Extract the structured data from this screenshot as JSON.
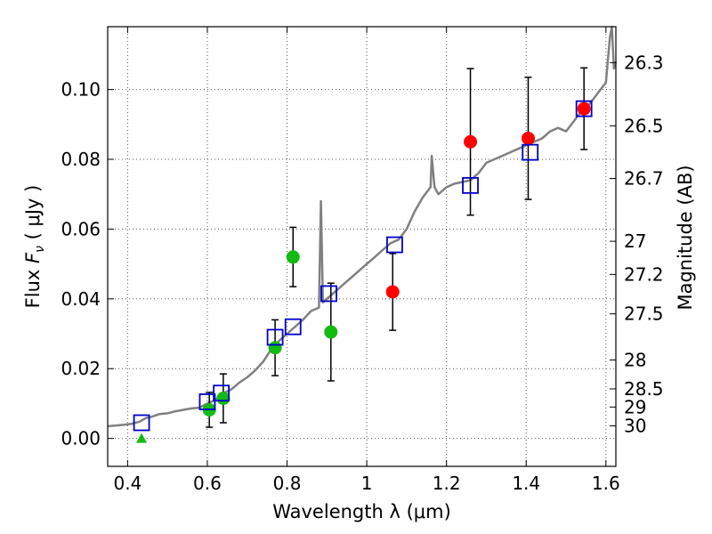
{
  "chart_data": {
    "type": "scatter",
    "title": "",
    "xlabel": "Wavelength  λ (μm)",
    "ylabel_parts": [
      "Flux  ",
      "F",
      "ν",
      "  ( μJy )"
    ],
    "y2label": "Magnitude (AB)",
    "xlim": [
      0.35,
      1.625
    ],
    "ylim": [
      -0.008,
      0.118
    ],
    "grid": true,
    "x_ticks": [
      0.4,
      0.6,
      0.8,
      1.0,
      1.2,
      1.4,
      1.6
    ],
    "x_tick_labels": [
      "0.4",
      "0.6",
      "0.8",
      "1",
      "1.2",
      "1.4",
      "1.6"
    ],
    "y_ticks": [
      0.0,
      0.02,
      0.04,
      0.06,
      0.08,
      0.1
    ],
    "y_tick_labels": [
      "0.00",
      "0.02",
      "0.04",
      "0.06",
      "0.08",
      "0.10"
    ],
    "mag_ticks": [
      {
        "label": "26.3",
        "flux": 0.1077
      },
      {
        "label": "26.5",
        "flux": 0.0896
      },
      {
        "label": "26.7",
        "flux": 0.0745
      },
      {
        "label": "27",
        "flux": 0.0565
      },
      {
        "label": "27.2",
        "flux": 0.047
      },
      {
        "label": "27.5",
        "flux": 0.0357
      },
      {
        "label": "28",
        "flux": 0.0225
      },
      {
        "label": "28.5",
        "flux": 0.0142
      },
      {
        "label": "29",
        "flux": 0.009
      },
      {
        "label": "30",
        "flux": 0.0036
      }
    ],
    "colors": {
      "model": "#808080",
      "model_bands": "#0000cc",
      "red_points": "#ff0000",
      "green_points": "#11bb11",
      "errorbar": "#000000",
      "grid": "#555555"
    },
    "series": [
      {
        "kind": "line",
        "points": [
          [
            0.35,
            0.0035
          ],
          [
            0.38,
            0.0038
          ],
          [
            0.41,
            0.0042
          ],
          [
            0.43,
            0.0048
          ],
          [
            0.445,
            0.0058
          ],
          [
            0.46,
            0.0062
          ],
          [
            0.48,
            0.007
          ],
          [
            0.5,
            0.0072
          ],
          [
            0.52,
            0.0078
          ],
          [
            0.54,
            0.0082
          ],
          [
            0.56,
            0.0086
          ],
          [
            0.58,
            0.0088
          ],
          [
            0.6,
            0.01
          ],
          [
            0.62,
            0.011
          ],
          [
            0.64,
            0.013
          ],
          [
            0.66,
            0.014
          ],
          [
            0.68,
            0.016
          ],
          [
            0.7,
            0.0175
          ],
          [
            0.72,
            0.0195
          ],
          [
            0.74,
            0.022
          ],
          [
            0.76,
            0.0255
          ],
          [
            0.78,
            0.028
          ],
          [
            0.8,
            0.03
          ],
          [
            0.82,
            0.032
          ],
          [
            0.84,
            0.034
          ],
          [
            0.86,
            0.0365
          ],
          [
            0.88,
            0.0375
          ],
          [
            0.885,
            0.068
          ],
          [
            0.89,
            0.039
          ],
          [
            0.9,
            0.04
          ],
          [
            0.92,
            0.042
          ],
          [
            0.94,
            0.044
          ],
          [
            0.96,
            0.046
          ],
          [
            0.98,
            0.048
          ],
          [
            1.0,
            0.05
          ],
          [
            1.02,
            0.052
          ],
          [
            1.04,
            0.054
          ],
          [
            1.06,
            0.056
          ],
          [
            1.08,
            0.057
          ],
          [
            1.1,
            0.06
          ],
          [
            1.12,
            0.065
          ],
          [
            1.14,
            0.069
          ],
          [
            1.16,
            0.072
          ],
          [
            1.163,
            0.081
          ],
          [
            1.17,
            0.072
          ],
          [
            1.18,
            0.07
          ],
          [
            1.2,
            0.072
          ],
          [
            1.22,
            0.073
          ],
          [
            1.24,
            0.0735
          ],
          [
            1.26,
            0.074
          ],
          [
            1.28,
            0.076
          ],
          [
            1.3,
            0.079
          ],
          [
            1.32,
            0.08
          ],
          [
            1.34,
            0.081
          ],
          [
            1.36,
            0.082
          ],
          [
            1.38,
            0.083
          ],
          [
            1.4,
            0.084
          ],
          [
            1.42,
            0.085
          ],
          [
            1.44,
            0.086
          ],
          [
            1.46,
            0.088
          ],
          [
            1.48,
            0.089
          ],
          [
            1.5,
            0.088
          ],
          [
            1.52,
            0.091
          ],
          [
            1.54,
            0.094
          ],
          [
            1.56,
            0.096
          ],
          [
            1.58,
            0.099
          ],
          [
            1.6,
            0.102
          ],
          [
            1.61,
            0.115
          ],
          [
            1.615,
            0.118
          ],
          [
            1.62,
            0.106
          ],
          [
            1.625,
            0.108
          ]
        ]
      },
      {
        "kind": "open-square",
        "points": [
          [
            0.435,
            0.0045
          ],
          [
            0.6,
            0.0105
          ],
          [
            0.635,
            0.013
          ],
          [
            0.77,
            0.029
          ],
          [
            0.815,
            0.032
          ],
          [
            0.905,
            0.0415
          ],
          [
            1.07,
            0.0555
          ],
          [
            1.26,
            0.0725
          ],
          [
            1.41,
            0.082
          ],
          [
            1.545,
            0.0945
          ]
        ]
      },
      {
        "kind": "red-circle",
        "points": [
          {
            "x": 1.065,
            "y": 0.042,
            "err": 0.011
          },
          {
            "x": 1.26,
            "y": 0.085,
            "err": 0.021
          },
          {
            "x": 1.405,
            "y": 0.086,
            "err": 0.0175
          },
          {
            "x": 1.545,
            "y": 0.0945,
            "err": 0.0117
          }
        ]
      },
      {
        "kind": "green-circle",
        "points": [
          {
            "x": 0.605,
            "y": 0.0082,
            "err": 0.005
          },
          {
            "x": 0.64,
            "y": 0.0115,
            "err": 0.007
          },
          {
            "x": 0.77,
            "y": 0.026,
            "err": 0.008
          },
          {
            "x": 0.815,
            "y": 0.052,
            "err": 0.0085
          },
          {
            "x": 0.91,
            "y": 0.0305,
            "err": 0.014
          }
        ]
      },
      {
        "kind": "green-triangle",
        "points": [
          [
            0.435,
            0.0
          ]
        ]
      }
    ]
  }
}
